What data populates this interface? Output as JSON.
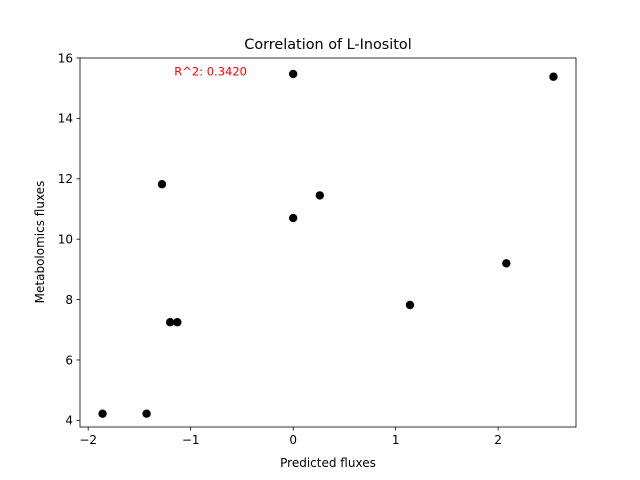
{
  "chart_data": {
    "type": "scatter",
    "title": "Correlation of L-Inositol",
    "xlabel": "Predicted fluxes",
    "ylabel": "Metabolomics fluxes",
    "xlim": [
      -2.08,
      2.76
    ],
    "ylim": [
      3.78,
      16.0
    ],
    "xticks": [
      -2,
      -1,
      0,
      1,
      2
    ],
    "xtick_labels": [
      "−2",
      "−1",
      "0",
      "1",
      "2"
    ],
    "yticks": [
      4,
      6,
      8,
      10,
      12,
      14,
      16
    ],
    "ytick_labels": [
      "4",
      "6",
      "8",
      "10",
      "12",
      "14",
      "16"
    ],
    "grid": false,
    "marker_color": "#000000",
    "annotation": {
      "text": "R^2: 0.3420",
      "color": "#ff0000",
      "x": -1.16,
      "y": 15.55
    },
    "points": [
      {
        "x": -1.86,
        "y": 4.22
      },
      {
        "x": -1.43,
        "y": 4.22
      },
      {
        "x": -1.2,
        "y": 7.25
      },
      {
        "x": -1.13,
        "y": 7.25
      },
      {
        "x": -1.28,
        "y": 11.82
      },
      {
        "x": 0.0,
        "y": 15.47
      },
      {
        "x": 0.0,
        "y": 10.7
      },
      {
        "x": 0.26,
        "y": 11.45
      },
      {
        "x": 1.14,
        "y": 7.82
      },
      {
        "x": 2.08,
        "y": 9.2
      },
      {
        "x": 2.54,
        "y": 15.38
      }
    ]
  }
}
